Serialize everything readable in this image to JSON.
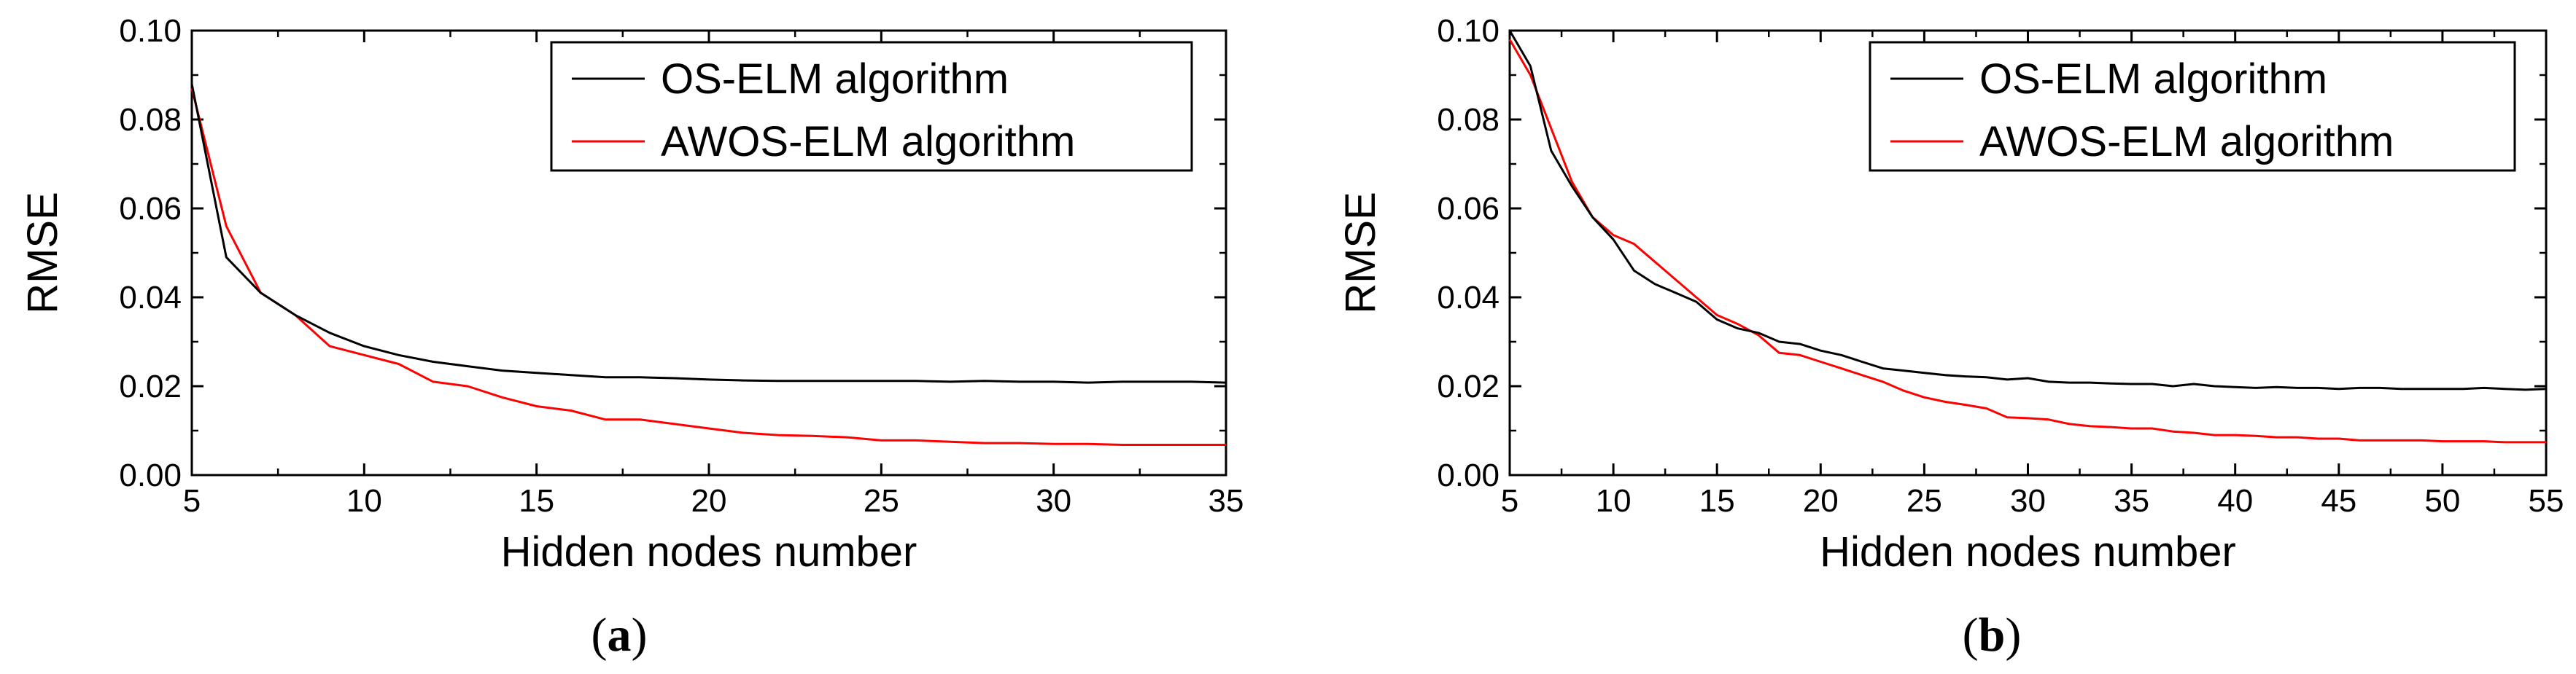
{
  "chart_data": [
    {
      "type": "line",
      "panel_label": "a",
      "xlabel": "Hidden nodes number",
      "ylabel": "RMSE",
      "xlim": [
        5,
        35
      ],
      "ylim": [
        0,
        0.1
      ],
      "xticks": [
        "5",
        "10",
        "15",
        "20",
        "25",
        "30",
        "35"
      ],
      "yticks": [
        "0.00",
        "0.02",
        "0.04",
        "0.06",
        "0.08",
        "0.10"
      ],
      "legend_position": "top-right",
      "series": [
        {
          "name": "OS-ELM algorithm",
          "color": "#000000",
          "x": [
            5,
            6,
            7,
            8,
            9,
            10,
            11,
            12,
            13,
            14,
            15,
            16,
            17,
            18,
            19,
            20,
            21,
            22,
            23,
            24,
            25,
            26,
            27,
            28,
            29,
            30,
            31,
            32,
            33,
            34,
            35
          ],
          "y": [
            0.088,
            0.049,
            0.041,
            0.036,
            0.032,
            0.029,
            0.027,
            0.0255,
            0.0245,
            0.0235,
            0.023,
            0.0225,
            0.022,
            0.022,
            0.0218,
            0.0215,
            0.0213,
            0.0212,
            0.0212,
            0.0212,
            0.0212,
            0.0212,
            0.021,
            0.0212,
            0.021,
            0.021,
            0.0208,
            0.021,
            0.021,
            0.021,
            0.0208
          ]
        },
        {
          "name": "AWOS-ELM algorithm",
          "color": "#ff0000",
          "x": [
            5,
            6,
            7,
            8,
            9,
            10,
            11,
            12,
            13,
            14,
            15,
            16,
            17,
            18,
            19,
            20,
            21,
            22,
            23,
            24,
            25,
            26,
            27,
            28,
            29,
            30,
            31,
            32,
            33,
            34,
            35
          ],
          "y": [
            0.087,
            0.056,
            0.041,
            0.036,
            0.029,
            0.027,
            0.025,
            0.021,
            0.02,
            0.0175,
            0.0155,
            0.0145,
            0.0125,
            0.0125,
            0.0115,
            0.0105,
            0.0095,
            0.009,
            0.0088,
            0.0085,
            0.0078,
            0.0078,
            0.0075,
            0.0072,
            0.0072,
            0.007,
            0.007,
            0.0068,
            0.0068,
            0.0068,
            0.0068
          ]
        }
      ]
    },
    {
      "type": "line",
      "panel_label": "b",
      "xlabel": "Hidden nodes number",
      "ylabel": "RMSE",
      "xlim": [
        5,
        55
      ],
      "ylim": [
        0,
        0.1
      ],
      "xticks": [
        "5",
        "10",
        "15",
        "20",
        "25",
        "30",
        "35",
        "40",
        "45",
        "50",
        "55"
      ],
      "yticks": [
        "0.00",
        "0.02",
        "0.04",
        "0.06",
        "0.08",
        "0.10"
      ],
      "legend_position": "top-right",
      "series": [
        {
          "name": "OS-ELM algorithm",
          "color": "#000000",
          "x": [
            5,
            6,
            7,
            8,
            9,
            10,
            11,
            12,
            13,
            14,
            15,
            16,
            17,
            18,
            19,
            20,
            21,
            22,
            23,
            24,
            25,
            26,
            27,
            28,
            29,
            30,
            31,
            32,
            33,
            34,
            35,
            36,
            37,
            38,
            39,
            40,
            41,
            42,
            43,
            44,
            45,
            46,
            47,
            48,
            49,
            50,
            51,
            52,
            53,
            54,
            55
          ],
          "y": [
            0.1,
            0.092,
            0.073,
            0.065,
            0.058,
            0.053,
            0.046,
            0.043,
            0.041,
            0.039,
            0.035,
            0.033,
            0.032,
            0.03,
            0.0295,
            0.028,
            0.027,
            0.0255,
            0.024,
            0.0235,
            0.023,
            0.0225,
            0.0222,
            0.022,
            0.0215,
            0.0218,
            0.021,
            0.0208,
            0.0208,
            0.0206,
            0.0205,
            0.0205,
            0.02,
            0.0205,
            0.02,
            0.0198,
            0.0196,
            0.0198,
            0.0196,
            0.0196,
            0.0194,
            0.0196,
            0.0196,
            0.0194,
            0.0194,
            0.0194,
            0.0194,
            0.0196,
            0.0194,
            0.0192,
            0.0194
          ]
        },
        {
          "name": "AWOS-ELM algorithm",
          "color": "#ff0000",
          "x": [
            5,
            6,
            7,
            8,
            9,
            10,
            11,
            12,
            13,
            14,
            15,
            16,
            17,
            18,
            19,
            20,
            21,
            22,
            23,
            24,
            25,
            26,
            27,
            28,
            29,
            30,
            31,
            32,
            33,
            34,
            35,
            36,
            37,
            38,
            39,
            40,
            41,
            42,
            43,
            44,
            45,
            46,
            47,
            48,
            49,
            50,
            51,
            52,
            53,
            54,
            55
          ],
          "y": [
            0.098,
            0.09,
            0.078,
            0.066,
            0.058,
            0.054,
            0.052,
            0.048,
            0.044,
            0.04,
            0.036,
            0.034,
            0.0315,
            0.0275,
            0.027,
            0.0255,
            0.024,
            0.0225,
            0.021,
            0.019,
            0.0175,
            0.0165,
            0.0158,
            0.015,
            0.013,
            0.0128,
            0.0125,
            0.0115,
            0.011,
            0.0108,
            0.0105,
            0.0105,
            0.0098,
            0.0095,
            0.009,
            0.009,
            0.0088,
            0.0085,
            0.0085,
            0.0082,
            0.0082,
            0.0078,
            0.0078,
            0.0078,
            0.0078,
            0.0076,
            0.0076,
            0.0076,
            0.0074,
            0.0074,
            0.0074
          ]
        }
      ]
    }
  ]
}
